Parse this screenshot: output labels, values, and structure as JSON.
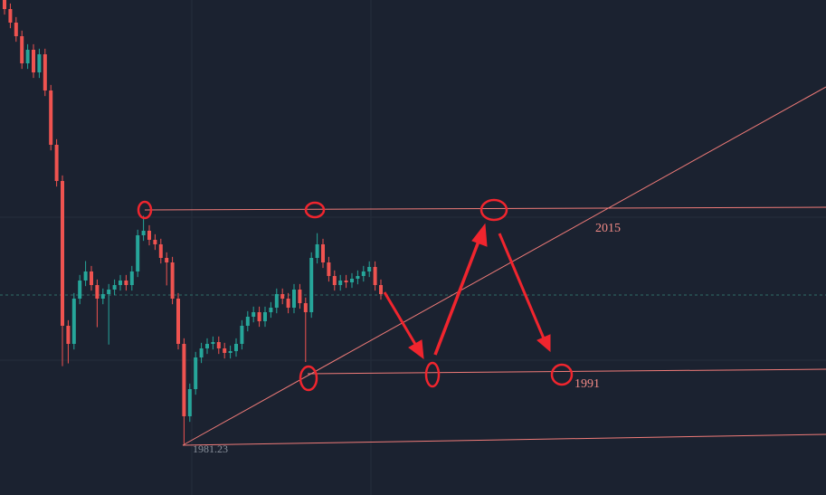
{
  "chart_data": {
    "type": "candlestick",
    "ylim": [
      1973.89,
      2045
    ],
    "up_color": "#26a69a",
    "down_color": "#ef5350",
    "open": [
      2045,
      2043.7,
      2041.75,
      2039.8,
      2035.9,
      2037.85,
      2034.6,
      2037.2,
      2032,
      2024.2,
      2019,
      1998.2,
      1995.6,
      2002.1,
      2004.7,
      2006,
      2004.05,
      2002.1,
      2002.75,
      2003.4,
      2004.05,
      2004.7,
      2004.05,
      2006,
      2011.2,
      2011.85,
      2010.55,
      2009.9,
      2007.95,
      2007.3,
      2002.1,
      1995.6,
      1985.2,
      1989.1,
      1993.65,
      1994.95,
      1995.6,
      1995.86,
      1994.95,
      1994.3,
      1994.56,
      1995.6,
      1998.2,
      1999.5,
      2000.15,
      1998.85,
      2000.15,
      2000.8,
      2002.75,
      2002.1,
      2000.8,
      2003.4,
      2001.45,
      2000.15,
      2007.95,
      2009.9,
      2007.3,
      2005.35,
      2004.05,
      2004.7,
      2004.44,
      2004.96,
      2005.35,
      2006,
      2006.65,
      2004.05
    ],
    "high": [
      2045.8,
      2044.5,
      2042.55,
      2040.6,
      2038.65,
      2038.65,
      2038,
      2038,
      2032.8,
      2025,
      2019.8,
      1999,
      2002.9,
      2005.5,
      2007.5,
      2006.8,
      2004.85,
      2003.55,
      2004.2,
      2004.85,
      2005.5,
      2005.5,
      2006.8,
      2012,
      2014,
      2012.65,
      2011.35,
      2010.7,
      2008.75,
      2008.1,
      2002.9,
      1996.4,
      1989.9,
      1994.45,
      1995.75,
      1996.4,
      1996.66,
      1996.66,
      1995.75,
      1995.36,
      1996.4,
      1999,
      2000.3,
      2000.95,
      2000.95,
      2000.95,
      2001.6,
      2003.55,
      2003.55,
      2002.9,
      2004.2,
      2004.2,
      2002.25,
      2008.75,
      2011.5,
      2010.7,
      2008.1,
      2006.15,
      2005.5,
      2005.5,
      2005.76,
      2006.15,
      2006.8,
      2007.45,
      2007.45,
      2004.85
    ],
    "low": [
      2042.9,
      2040.95,
      2039,
      2035.1,
      2035.1,
      2033.8,
      2033.8,
      2031.2,
      2023.4,
      2018.2,
      1992.4,
      1992.8,
      1994.8,
      2001.3,
      2003.9,
      2003.25,
      1998,
      2001.3,
      1995.5,
      2002.6,
      2003.25,
      2003.25,
      2003.25,
      2005.2,
      2010.4,
      2009.75,
      2009.1,
      2007.15,
      2004,
      2001.3,
      1994.8,
      1981.23,
      1984.4,
      1988.3,
      1992.85,
      1994.15,
      1994.8,
      1994.15,
      1993.5,
      1993.5,
      1993.76,
      1994.8,
      1997.4,
      1998.7,
      1998.05,
      1998.05,
      1999.35,
      2000,
      2001.3,
      2000,
      2000,
      2000.65,
      1993,
      1999.35,
      2007.15,
      2006.5,
      2004.55,
      2003.25,
      2003.25,
      2003.64,
      2003.64,
      2004.16,
      2004.55,
      2005.2,
      2003.25,
      2001.95
    ],
    "close": [
      2043.7,
      2041.75,
      2039.8,
      2035.9,
      2037.85,
      2034.6,
      2037.2,
      2032,
      2024.2,
      2019,
      1998.2,
      1995.6,
      2002.1,
      2004.7,
      2006,
      2004.05,
      2002.1,
      2002.75,
      2003.4,
      2004.05,
      2004.7,
      2004.05,
      2006,
      2011.2,
      2011.85,
      2010.55,
      2009.9,
      2007.95,
      2007.3,
      2002.1,
      1995.6,
      1985.2,
      1989.1,
      1993.65,
      1994.95,
      1995.6,
      1995.86,
      1994.95,
      1994.3,
      1994.56,
      1995.6,
      1998.2,
      1999.5,
      2000.15,
      1998.85,
      2000.15,
      2000.8,
      2002.75,
      2002.1,
      2000.8,
      2003.4,
      2001.45,
      2000.15,
      2007.95,
      2009.9,
      2007.3,
      2005.35,
      2004.05,
      2004.7,
      2004.44,
      2004.96,
      2005.35,
      2006,
      2006.65,
      2004.05,
      2002.75
    ],
    "annotations": [
      "2015",
      "1991"
    ],
    "low_label": "1981.23"
  }
}
